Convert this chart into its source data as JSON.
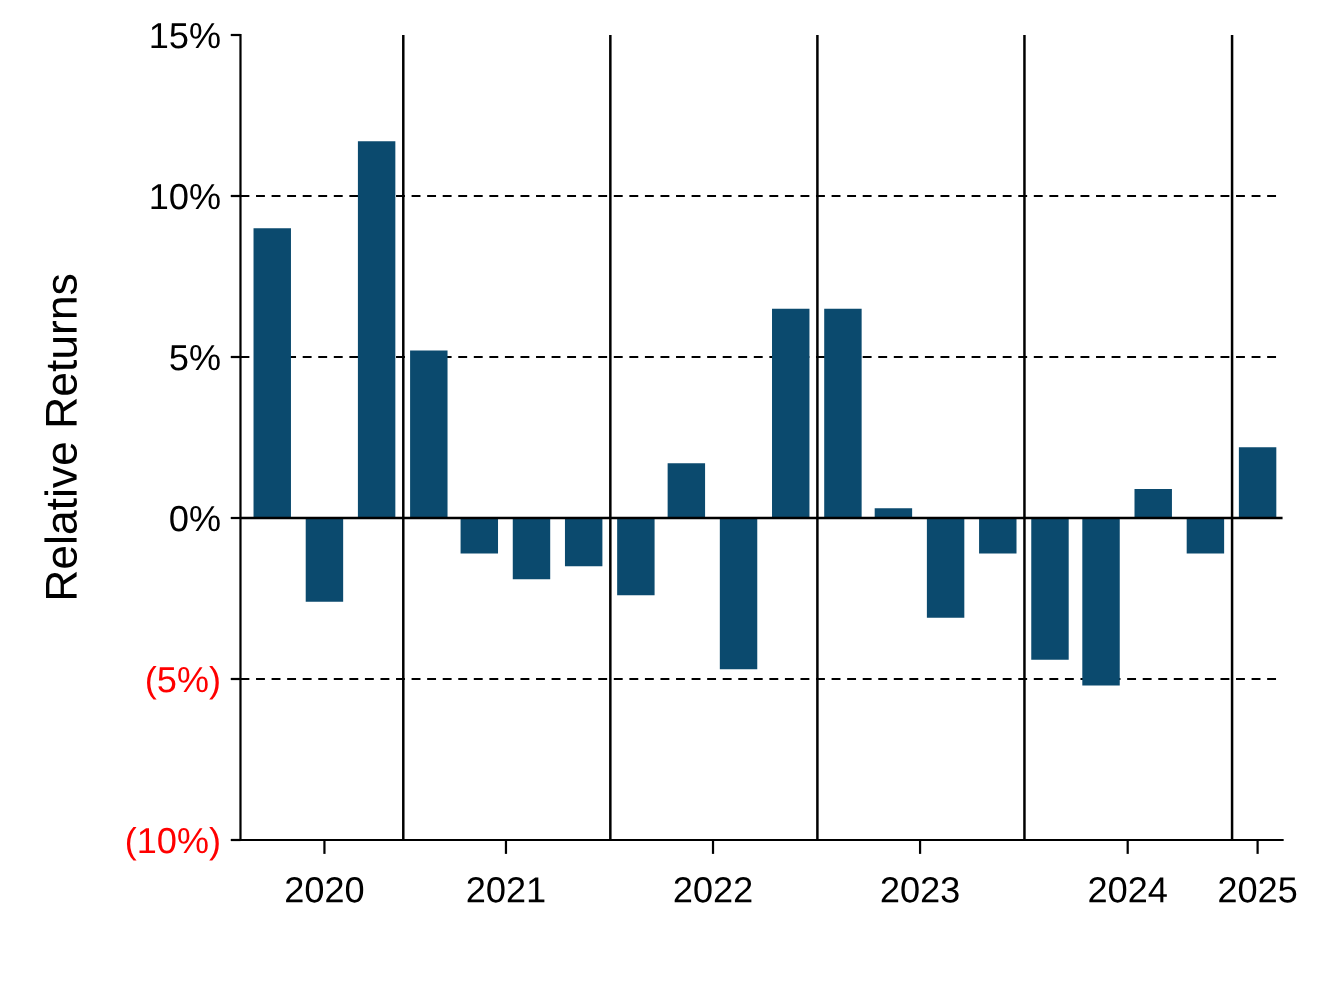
{
  "chart_data": {
    "type": "bar",
    "ylabel": "Relative Returns",
    "x": [
      "2020-05-15",
      "2020-08-15",
      "2020-11-15",
      "2021-02-15",
      "2021-05-15",
      "2021-08-15",
      "2021-11-15",
      "2022-02-15",
      "2022-05-15",
      "2022-08-15",
      "2022-11-15",
      "2023-02-15",
      "2023-05-15",
      "2023-08-15",
      "2023-11-15",
      "2024-02-15",
      "2024-05-15",
      "2024-08-15",
      "2024-11-15",
      "2025-02-15"
    ],
    "series": [
      {
        "color": "#0b4a6e",
        "values": [
          9.0,
          -2.6,
          11.7,
          5.2,
          -1.1,
          -1.9,
          -1.5,
          -2.4,
          1.7,
          -4.7,
          6.5,
          6.5,
          0.3,
          -3.1,
          -1.1,
          -4.4,
          -5.2,
          0.9,
          -1.1,
          2.2
        ]
      }
    ],
    "xlim": [
      "2020-03-20",
      "2025-03-31"
    ],
    "xticks": [
      {
        "value": "2020-08-15",
        "label": "2020"
      },
      {
        "value": "2021-07-01",
        "label": "2021"
      },
      {
        "value": "2022-07-01",
        "label": "2022"
      },
      {
        "value": "2023-07-01",
        "label": "2023"
      },
      {
        "value": "2024-07-01",
        "label": "2024"
      },
      {
        "value": "2025-02-15",
        "label": "2025"
      }
    ],
    "ylim": [
      -10,
      15
    ],
    "yticks": [
      {
        "value": -10,
        "label": "(10%)"
      },
      {
        "value": -5,
        "label": "(5%)"
      },
      {
        "value": 0,
        "label": "0%"
      },
      {
        "value": 5,
        "label": "5%"
      },
      {
        "value": 10,
        "label": "10%"
      },
      {
        "value": 15,
        "label": "15%"
      }
    ],
    "grid": "y",
    "ref_lines": [
      {
        "axis": "y",
        "value": 0,
        "color": "#000000",
        "line_style": "solid"
      },
      {
        "axis": "x",
        "value": "2021-01-01",
        "color": "#000000",
        "line_style": "solid"
      },
      {
        "axis": "x",
        "value": "2022-01-01",
        "color": "#000000",
        "line_style": "solid"
      },
      {
        "axis": "x",
        "value": "2023-01-01",
        "color": "#000000",
        "line_style": "solid"
      },
      {
        "axis": "x",
        "value": "2024-01-01",
        "color": "#000000",
        "line_style": "solid"
      },
      {
        "axis": "x",
        "value": "2025-01-01",
        "color": "#000000",
        "line_style": "solid"
      }
    ]
  }
}
